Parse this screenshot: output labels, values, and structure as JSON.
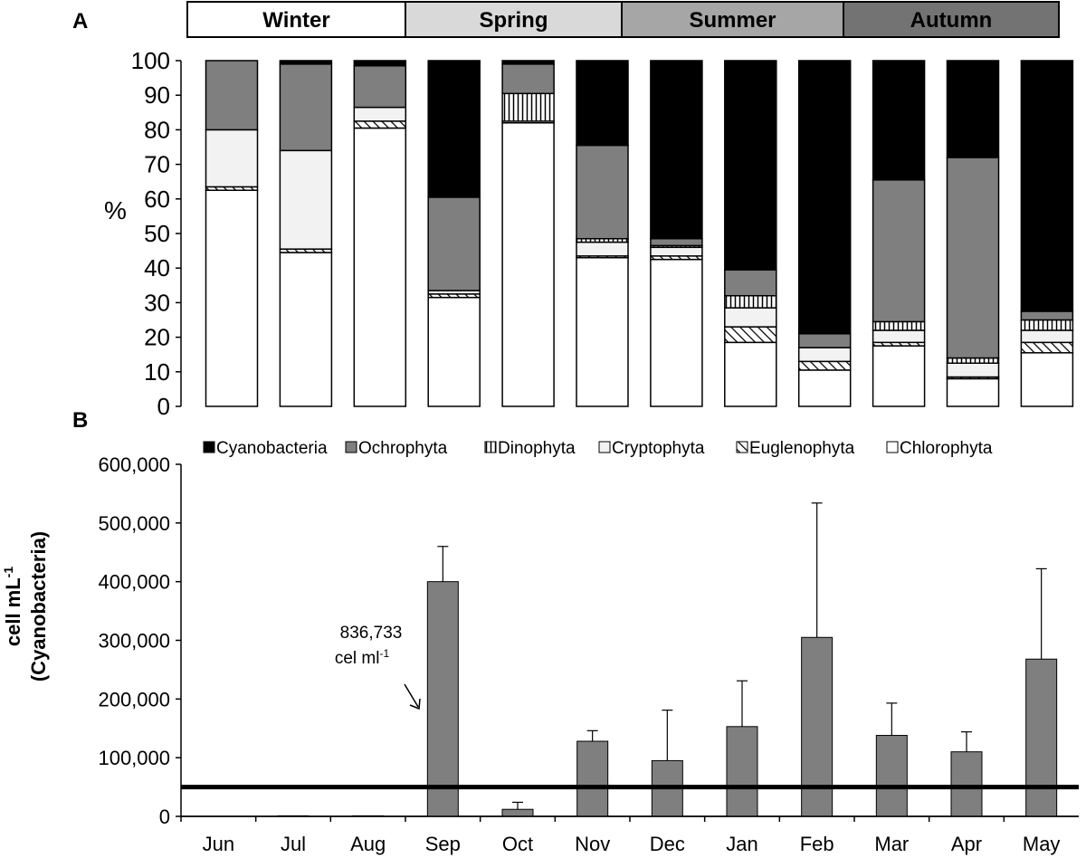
{
  "seasons": [
    {
      "label": "Winter",
      "fill": "#ffffff",
      "span": 3
    },
    {
      "label": "Spring",
      "fill": "#d9d9d9",
      "span": 3
    },
    {
      "label": "Summer",
      "fill": "#a6a6a6",
      "span": 3
    },
    {
      "label": "Autumn",
      "fill": "#737373",
      "span": 3
    }
  ],
  "chart_data": [
    {
      "panel": "A",
      "type": "bar",
      "stacked": true,
      "percent": true,
      "categories": [
        "Jun",
        "Jul",
        "Aug",
        "Sep",
        "Oct",
        "Nov",
        "Dec",
        "Jan",
        "Feb",
        "Mar",
        "Apr",
        "May"
      ],
      "ylabel": "%",
      "ylim": [
        0,
        100
      ],
      "yticks": [
        "0",
        "10",
        "20",
        "30",
        "40",
        "50",
        "60",
        "70",
        "80",
        "90",
        "100"
      ],
      "series": [
        {
          "name": "Chlorophyta",
          "pattern": "white",
          "values": [
            62.5,
            44.5,
            80.5,
            31.5,
            82,
            43,
            42.5,
            18.5,
            10.5,
            17.5,
            8,
            15.5
          ]
        },
        {
          "name": "Euglenophyta",
          "pattern": "hatch",
          "values": [
            1,
            1,
            2,
            1,
            0,
            0.5,
            1,
            4.5,
            2.5,
            1,
            0.5,
            3
          ]
        },
        {
          "name": "Cryptophyta",
          "pattern": "light",
          "values": [
            16.5,
            28.5,
            4,
            1,
            0.5,
            4,
            2.5,
            5.5,
            4,
            3.5,
            4,
            3.5
          ]
        },
        {
          "name": "Dinophyta",
          "pattern": "vstripe",
          "values": [
            0,
            0,
            0,
            0,
            8,
            1,
            0.5,
            3.5,
            0,
            2.5,
            1.5,
            3
          ]
        },
        {
          "name": "Ochrophyta",
          "pattern": "gray",
          "values": [
            20,
            25,
            12,
            27,
            8.5,
            27,
            2,
            7.5,
            4,
            41,
            58,
            2.5
          ]
        },
        {
          "name": "Cyanobacteria",
          "pattern": "black",
          "values": [
            0,
            1,
            1.5,
            39.5,
            1,
            24.5,
            51.5,
            60.5,
            79,
            34.5,
            28,
            72.5
          ]
        }
      ]
    },
    {
      "panel": "B",
      "type": "bar",
      "categories": [
        "Jun",
        "Jul",
        "Aug",
        "Sep",
        "Oct",
        "Nov",
        "Dec",
        "Jan",
        "Feb",
        "Mar",
        "Apr",
        "May"
      ],
      "ylabel": "cell mL-1 (Cyanobacteria)",
      "ylim": [
        0,
        600000
      ],
      "yticks": [
        "0",
        "100,000",
        "200,000",
        "300,000",
        "400,000",
        "500,000",
        "600,000"
      ],
      "series": [
        {
          "name": "Cyanobacteria",
          "values": [
            0,
            1000,
            1000,
            400000,
            12000,
            128000,
            95000,
            153000,
            305000,
            138000,
            110000,
            268000
          ],
          "error_upper": [
            0,
            0,
            0,
            460000,
            24000,
            146000,
            181000,
            231000,
            534000,
            193000,
            144000,
            422000
          ]
        }
      ],
      "reference_line": 50000,
      "annotation": {
        "line1": "836,733",
        "line2": "cel ml",
        "sup": "-1",
        "month": "Sep"
      }
    }
  ],
  "labels": {
    "panelA": "A",
    "panelB": "B",
    "yA": "%",
    "yB_line1_main": "cell mL",
    "yB_line1_sup": "-1",
    "yB_line2": "(Cyanobacteria)"
  },
  "legend": [
    "Cyanobacteria",
    "Ochrophyta",
    "Dinophyta",
    "Cryptophyta",
    "Euglenophyta",
    "Chlorophyta"
  ],
  "colors": {
    "cyanobacteria": "#000000",
    "ochrophyta": "#7f7f7f",
    "cryptophyta": "#f2f2f2",
    "chlorophyta": "#ffffff",
    "barB": "#7f7f7f"
  }
}
